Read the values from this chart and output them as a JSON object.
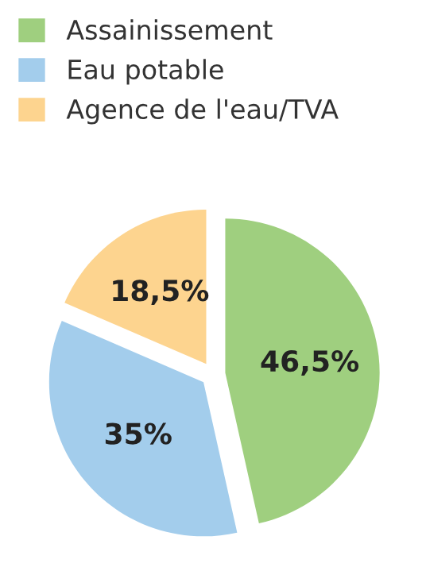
{
  "chart_data": {
    "type": "pie",
    "categories": [
      "Assainissement",
      "Eau potable",
      "Agence de l'eau/TVA"
    ],
    "values": [
      46.5,
      35,
      18.5
    ],
    "colors": [
      "#9fcf7f",
      "#a3cdec",
      "#fdd48f"
    ],
    "value_labels": [
      "46,5%",
      "35%",
      "18,5%"
    ],
    "legend": "top"
  }
}
